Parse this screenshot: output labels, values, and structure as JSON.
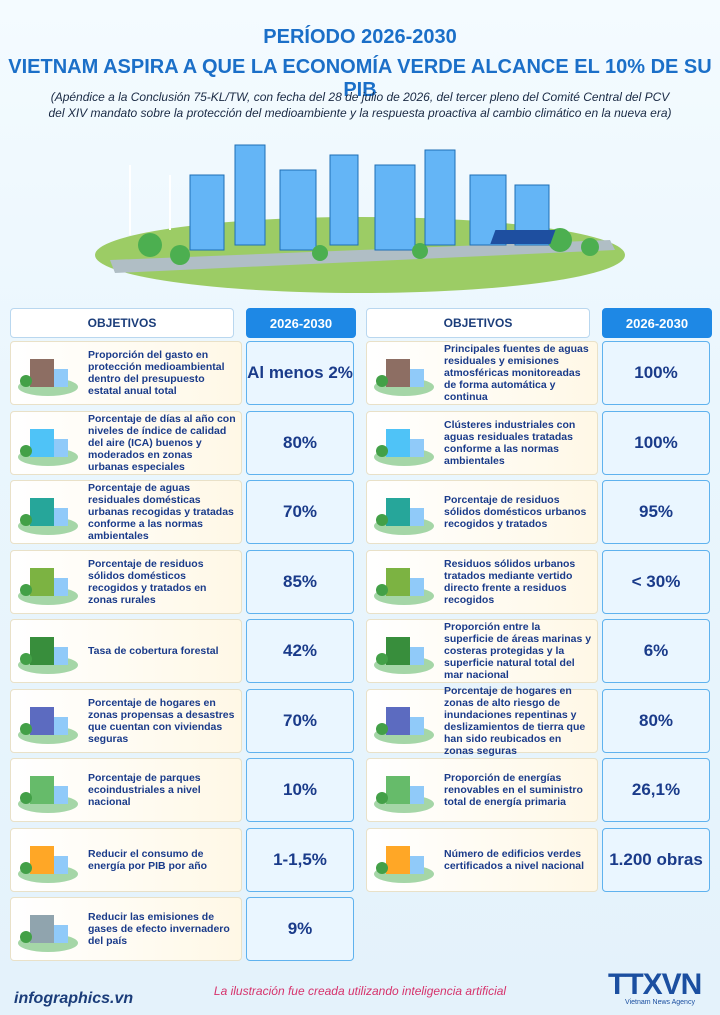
{
  "header": {
    "kicker": "PERÍODO 2026-2030",
    "title": "VIETNAM ASPIRA A QUE LA ECONOMÍA VERDE ALCANCE EL 10% DE SU PIB",
    "subtitle": [
      "(Apéndice a la Conclusión 75-KL/TW, con fecha del 28 de julio de 2026, del tercer pleno del Comité Central del PCV",
      "del XIV mandato sobre la protección del medioambiente y la respuesta proactiva al cambio climático en la nueva era)"
    ]
  },
  "table": {
    "left": {
      "headers": [
        "OBJETIVOS",
        "2026-2030"
      ],
      "rows": [
        [
          "Proporción del gasto en protección medioambiental dentro del presupuesto estatal anual total",
          "Al menos 2%"
        ],
        [
          "Porcentaje de días al año con niveles de índice de calidad del aire (ICA) buenos y moderados en zonas urbanas especiales",
          "80%"
        ],
        [
          "Porcentaje de aguas residuales domésticas urbanas recogidas y tratadas conforme a las normas ambientales",
          "70%"
        ],
        [
          "Porcentaje de residuos sólidos domésticos recogidos y tratados en zonas rurales",
          "85%"
        ],
        [
          "Tasa de cobertura forestal",
          "42%"
        ],
        [
          "Porcentaje de hogares en zonas propensas a desastres que cuentan con viviendas seguras",
          "70%"
        ],
        [
          "Porcentaje de parques ecoindustriales a nivel nacional",
          "10%"
        ],
        [
          "Reducir el consumo de energía por PIB por año",
          "1-1,5%"
        ],
        [
          "Reducir las emisiones de gases de efecto invernadero del país",
          "9%"
        ]
      ]
    },
    "right": {
      "headers": [
        "OBJETIVOS",
        "2026-2030"
      ],
      "rows": [
        [
          "Principales fuentes de aguas residuales y emisiones atmosféricas monitoreadas de forma automática y continua",
          "100%"
        ],
        [
          "Clústeres industriales con aguas residuales tratadas conforme a las normas ambientales",
          "100%"
        ],
        [
          "Porcentaje de residuos sólidos domésticos urbanos recogidos y tratados",
          "95%"
        ],
        [
          "Residuos sólidos urbanos tratados mediante vertido directo frente a residuos recogidos",
          "< 30%"
        ],
        [
          "Proporción entre la superficie de áreas marinas y costeras protegidas y la superficie natural total del mar nacional",
          "6%"
        ],
        [
          "Porcentaje de hogares en zonas de alto riesgo de inundaciones repentinas y deslizamientos de tierra que han sido reubicados en zonas seguras",
          "80%"
        ],
        [
          "Proporción de energías renovables en el suministro total de energía primaria",
          "26,1%"
        ],
        [
          "Número de edificios verdes certificados a nivel nacional",
          "1.200 obras"
        ]
      ]
    }
  },
  "footer": {
    "site": "infographics.vn",
    "note": "La ilustración fue creada utilizando inteligencia artificial",
    "logo": "TTXVN",
    "logo_sub": "Vietnam News Agency"
  }
}
